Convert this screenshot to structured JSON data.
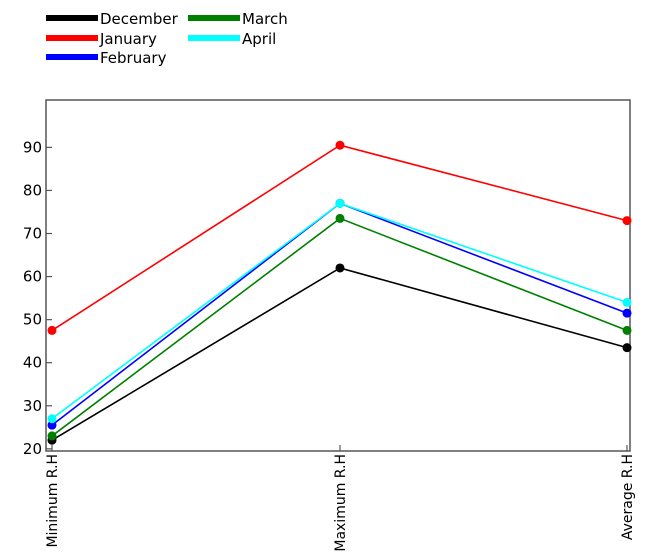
{
  "chart_data": {
    "type": "line",
    "categories": [
      "Minimum R.H",
      "Maximum R.H",
      "Average R.H"
    ],
    "series": [
      {
        "name": "December",
        "color": "#000000",
        "values": [
          22,
          62,
          43.5
        ]
      },
      {
        "name": "January",
        "color": "#ff0000",
        "values": [
          47.5,
          90.5,
          73
        ]
      },
      {
        "name": "February",
        "color": "#0000ff",
        "values": [
          25.5,
          77,
          51.5
        ]
      },
      {
        "name": "March",
        "color": "#008000",
        "values": [
          23,
          73.5,
          47.5
        ]
      },
      {
        "name": "April",
        "color": "#00ffff",
        "values": [
          27,
          77,
          54
        ]
      }
    ],
    "yticks": [
      20,
      30,
      40,
      50,
      60,
      70,
      80,
      90
    ],
    "ylim": [
      19.5,
      101
    ],
    "legend_position": "top-left",
    "grid": false
  }
}
